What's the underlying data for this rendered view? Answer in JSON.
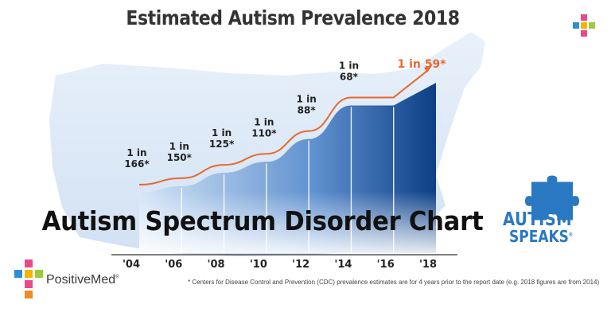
{
  "title": "Estimated Autism Prevalence 2018",
  "overlay_title": "Autism Spectrum Disorder Chart",
  "footnote": "* Centers for Disease Control and Prevention (CDC) prevalence estimates are for 4 years prior to the report date (e.g. 2018 figures are from 2014)",
  "brand": {
    "name": "PositiveMed",
    "reg": "®"
  },
  "autism_speaks": {
    "line1": "AUTISM",
    "line2": "SPEAKS",
    "reg": "®"
  },
  "colors": {
    "bar_dark": "#0d3f86",
    "bar_light": "#bcd6f1",
    "trend": "#e8692e",
    "highlight": "#e8692e",
    "brand_blue": "#2a78c2"
  },
  "chart_data": {
    "type": "area",
    "categories": [
      "'04",
      "'06",
      "'08",
      "'10",
      "'12",
      "'14",
      "'16",
      "'18"
    ],
    "series": [
      {
        "values": [
          166,
          150,
          125,
          110,
          88,
          68,
          68,
          59
        ]
      }
    ],
    "labels": [
      {
        "x": "'04",
        "line1": "1 in",
        "line2": "166*"
      },
      {
        "x": "'06",
        "line1": "1 in",
        "line2": "150*"
      },
      {
        "x": "'08",
        "line1": "1 in",
        "line2": "125*"
      },
      {
        "x": "'10",
        "line1": "1 in",
        "line2": "110*"
      },
      {
        "x": "'12",
        "line1": "1 in",
        "line2": "88*"
      },
      {
        "x": "'14",
        "line1": "1 in",
        "line2": "68*"
      },
      {
        "x": "'18",
        "line1": "1 in 59*",
        "line2": ""
      }
    ],
    "title": "Estimated Autism Prevalence 2018",
    "xlabel": "",
    "ylabel": "",
    "grid": false
  }
}
